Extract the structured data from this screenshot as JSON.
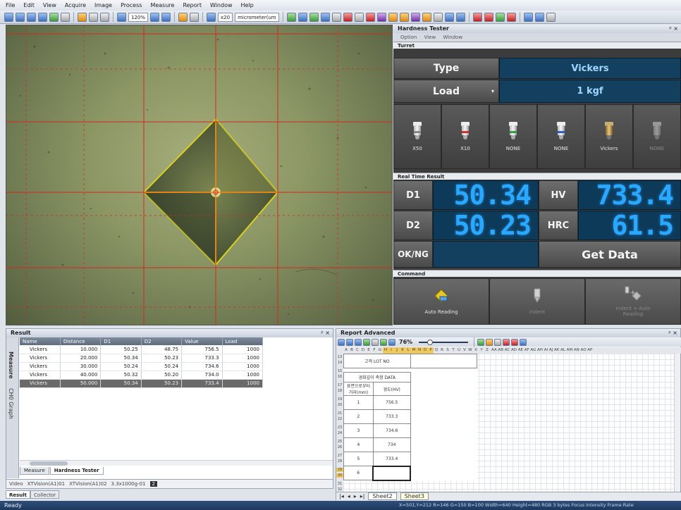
{
  "menu": [
    "File",
    "Edit",
    "View",
    "Acquire",
    "Image",
    "Process",
    "Measure",
    "Report",
    "Window",
    "Help"
  ],
  "toolbar": {
    "zoom": "120%",
    "objective": "x20",
    "unit": "micrometer(um"
  },
  "hardness_tester": {
    "title": "Hardness Tester",
    "pin": "ᵖ ×",
    "submenu": [
      "Option",
      "View",
      "Window"
    ],
    "turret_label": "Turret",
    "type_label": "Type",
    "type_value": "Vickers",
    "load_label": "Load",
    "load_value": "1 kgf",
    "turret_positions": [
      "X50",
      "X10",
      "NONE",
      "NONE",
      "Vickers",
      "NONE"
    ],
    "rt_label": "Real Time Result",
    "d1_label": "D1",
    "d1_value": "50.34",
    "hv_label": "HV",
    "hv_value": "733.4",
    "d2_label": "D2",
    "d2_value": "50.23",
    "hrc_label": "HRC",
    "hrc_value": "61.5",
    "okng_label": "OK/NG",
    "get_data_label": "Get Data",
    "command_label": "Command",
    "auto_reading_label": "Auto Reading",
    "indent_label": "Indent",
    "indent_auto_label": "Indent + Auto Reading"
  },
  "result": {
    "title": "Result",
    "pin": "ᵖ ×",
    "columns": [
      "Name",
      "Distance",
      "D1",
      "D2",
      "Value",
      "Load"
    ],
    "rows": [
      [
        "Vickers",
        "10.000",
        "50.25",
        "48.75",
        "756.5",
        "1000"
      ],
      [
        "Vickers",
        "20.000",
        "50.34",
        "50.23",
        "733.3",
        "1000"
      ],
      [
        "Vickers",
        "30.000",
        "50.24",
        "50.24",
        "734.6",
        "1000"
      ],
      [
        "Vickers",
        "40.000",
        "50.32",
        "50.20",
        "734.0",
        "1000"
      ],
      [
        "Vickers",
        "50.000",
        "50.34",
        "50.23",
        "733.4",
        "1000"
      ]
    ],
    "vtabs": [
      "Measure",
      "CH0 Graph"
    ],
    "tabs": [
      "Measure",
      "Hardness Tester"
    ]
  },
  "video_tabs": [
    "Video",
    "XTVision(A1)01",
    "XTVision(A1)02",
    "3.3x1000g-01",
    "2"
  ],
  "bottom_tabs": [
    "Result",
    "Collector"
  ],
  "report": {
    "title": "Report Advanced",
    "pin": "ᵖ ×",
    "zoom": "76%",
    "lot_label": "고객 LOT NO",
    "table_title": "경화깊이 측정 DATA",
    "col1": "표면으로부터거리(mm)",
    "col2": "경도(HV)",
    "rows": [
      [
        "1",
        "756.5"
      ],
      [
        "2",
        "733.3"
      ],
      [
        "3",
        "734.6"
      ],
      [
        "4",
        "734"
      ],
      [
        "5",
        "733.4"
      ],
      [
        "6",
        ""
      ]
    ],
    "sheets": [
      "Sheet2",
      "Sheet3"
    ]
  },
  "status": {
    "left": "Ready",
    "right": "X=501,Y=212   R=146 G=150 B=100   Width=640 Height=480   RGB 3 bytes   Focus   Intensity   Frame Rate"
  },
  "colors": {
    "panel_blue": "#12405e",
    "lcd": "#2aa8ff",
    "crosshair": "#d22a1e",
    "indent_yellow": "#f0e010"
  }
}
